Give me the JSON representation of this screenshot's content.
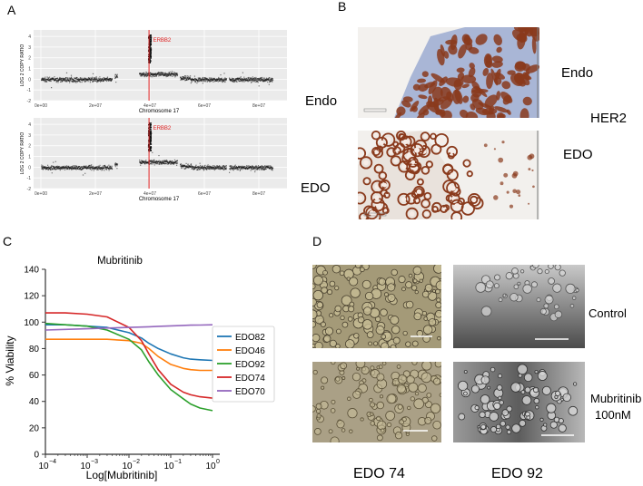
{
  "panel_labels": {
    "a": "A",
    "b": "B",
    "c": "C",
    "d": "D"
  },
  "panel_a": {
    "plots": [
      {
        "sample_label": "Endo",
        "ylabel": "LOG 2 COPY RATIO",
        "xlabel": "Chromosome 17",
        "y_ticks": [
          "4",
          "3",
          "2",
          "1",
          "0",
          "-1",
          "-2"
        ],
        "x_ticks": [
          "0e+00",
          "2e+07",
          "4e+07",
          "6e+07",
          "8e+07"
        ],
        "gene_label": "ERBB2"
      },
      {
        "sample_label": "EDO",
        "ylabel": "LOG 2 COPY RATIO",
        "xlabel": "Chromosome 17",
        "y_ticks": [
          "4",
          "3",
          "2",
          "1",
          "0",
          "-1",
          "-2"
        ],
        "x_ticks": [
          "0e+00",
          "2e+07",
          "4e+07",
          "6e+07",
          "8e+07"
        ],
        "gene_label": "ERBB2"
      }
    ]
  },
  "panel_b": {
    "top_label": "Endo",
    "bottom_label": "EDO",
    "marker_label": "HER2",
    "tissue_color": "#8a3a1c",
    "stroma_color": "#a9b6d6"
  },
  "chart_data": {
    "type": "line",
    "title": "Mubritinib",
    "xlabel": "Log[Mubritinib]",
    "ylabel": "% Viability",
    "x_scale": "log",
    "xlim": [
      0.0001,
      1
    ],
    "ylim": [
      0,
      140
    ],
    "x_tick_labels": [
      "10",
      "10",
      "10",
      "10",
      "10"
    ],
    "x_tick_exponents": [
      "−4",
      "−3",
      "−2",
      "−1",
      "0"
    ],
    "y_tick_labels": [
      "0",
      "20",
      "40",
      "60",
      "80",
      "100",
      "120",
      "140"
    ],
    "legend_position": "right",
    "x": [
      0.0001,
      0.0003,
      0.001,
      0.003,
      0.01,
      0.02,
      0.03,
      0.05,
      0.1,
      0.2,
      0.3,
      0.5,
      1
    ],
    "series": [
      {
        "name": "EDO82",
        "color": "#1f77b4",
        "values": [
          98,
          98,
          97,
          96,
          92,
          88,
          84,
          80,
          76,
          73,
          72,
          71.5,
          71
        ]
      },
      {
        "name": "EDO46",
        "color": "#ff7f0e",
        "values": [
          87,
          87,
          87,
          87,
          86,
          84,
          80,
          74,
          68,
          65,
          64,
          63.5,
          63.5
        ]
      },
      {
        "name": "EDO92",
        "color": "#2ca02c",
        "values": [
          99,
          98,
          97,
          94,
          87,
          79,
          70,
          60,
          49,
          42,
          38,
          35,
          33
        ]
      },
      {
        "name": "EDO74",
        "color": "#d62728",
        "values": [
          107,
          107,
          106,
          104,
          96,
          86,
          76,
          64,
          53,
          47,
          45,
          43.5,
          42.5
        ]
      },
      {
        "name": "EDO70",
        "color": "#9467bd",
        "values": [
          94,
          94.5,
          95,
          95.5,
          96,
          96.3,
          96.5,
          96.8,
          97.2,
          97.5,
          97.7,
          97.8,
          98
        ]
      }
    ]
  },
  "panel_d": {
    "row_labels": [
      "Control",
      "Mubritinib",
      "100nM"
    ],
    "column_labels": [
      "EDO 74",
      "EDO 92"
    ]
  }
}
